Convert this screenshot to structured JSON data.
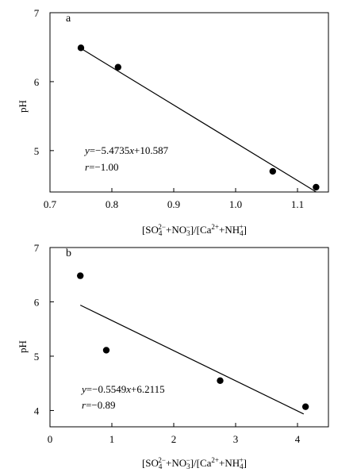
{
  "chart_data": [
    {
      "type": "scatter",
      "panel_label": "a",
      "xlabel": "[SO4 2-+NO3 -]/[Ca2+ +NH4 +]",
      "ylabel": "pH",
      "xlim": [
        0.7,
        1.15
      ],
      "ylim": [
        4.4,
        7.0
      ],
      "xticks": [
        0.7,
        0.8,
        0.9,
        1.0,
        1.1
      ],
      "xtick_labels": [
        "0.7",
        "0.8",
        "0.9",
        "1.0",
        "1.1"
      ],
      "yticks": [
        5,
        6,
        7
      ],
      "ytick_labels": [
        "5",
        "6",
        "7"
      ],
      "points": [
        {
          "x": 0.75,
          "y": 6.49
        },
        {
          "x": 0.81,
          "y": 6.21
        },
        {
          "x": 1.06,
          "y": 4.7
        },
        {
          "x": 1.13,
          "y": 4.47
        }
      ],
      "fit": {
        "slope": -5.4735,
        "intercept": 10.587,
        "x_range": [
          0.75,
          1.13
        ]
      },
      "equation": {
        "y_prefix": "=−5.4735",
        "x_part": "+10.587",
        "r_value": "=−1.00"
      }
    },
    {
      "type": "scatter",
      "panel_label": "b",
      "xlabel": "[SO4 2-+NO3 -]/[Ca2+ +NH4 +]",
      "ylabel": "pH",
      "xlim": [
        0,
        4.5
      ],
      "ylim": [
        3.7,
        7.0
      ],
      "xticks": [
        0,
        1,
        2,
        3,
        4
      ],
      "xtick_labels": [
        "0",
        "1",
        "2",
        "3",
        "4"
      ],
      "yticks": [
        4,
        5,
        6,
        7
      ],
      "ytick_labels": [
        "4",
        "5",
        "6",
        "7"
      ],
      "points": [
        {
          "x": 0.49,
          "y": 6.48
        },
        {
          "x": 0.91,
          "y": 5.11
        },
        {
          "x": 2.75,
          "y": 4.55
        },
        {
          "x": 4.13,
          "y": 4.07
        }
      ],
      "fit": {
        "slope": -0.5549,
        "intercept": 6.2115,
        "x_range": [
          0.49,
          4.1
        ]
      },
      "equation": {
        "y_prefix": "=−0.5549",
        "x_part": "+6.2115",
        "r_value": "=−0.89"
      }
    }
  ]
}
